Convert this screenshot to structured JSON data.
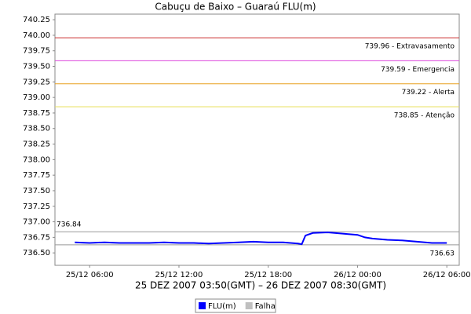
{
  "chart_data": {
    "type": "line",
    "title": "Cabuçu de Baixo – Guaraú FLU(m)",
    "subtitle": "25 DEZ 2007 03:50(GMT) – 26 DEZ 2007 08:30(GMT)",
    "x": [
      "25/12 05:00",
      "25/12 06:00",
      "25/12 07:00",
      "25/12 08:00",
      "25/12 09:00",
      "25/12 10:00",
      "25/12 11:00",
      "25/12 12:00",
      "25/12 13:00",
      "25/12 14:00",
      "25/12 15:00",
      "25/12 16:00",
      "25/12 17:00",
      "25/12 18:00",
      "25/12 19:00",
      "25/12 20:00",
      "25/12 20:15",
      "25/12 20:30",
      "25/12 21:00",
      "25/12 22:00",
      "25/12 23:00",
      "26/12 00:00",
      "26/12 00:30",
      "26/12 01:00",
      "26/12 02:00",
      "26/12 03:00",
      "26/12 04:00",
      "26/12 05:00",
      "26/12 06:00"
    ],
    "series": [
      {
        "name": "FLU(m)",
        "color": "#0000ff",
        "values": [
          736.67,
          736.66,
          736.67,
          736.66,
          736.66,
          736.66,
          736.67,
          736.66,
          736.66,
          736.65,
          736.66,
          736.67,
          736.68,
          736.67,
          736.67,
          736.65,
          736.64,
          736.78,
          736.82,
          736.83,
          736.81,
          736.79,
          736.75,
          736.73,
          736.71,
          736.7,
          736.68,
          736.66,
          736.66
        ]
      },
      {
        "name": "Falha",
        "color": "#c0c0c0",
        "values": [
          null,
          null,
          null,
          null,
          null,
          null,
          null,
          null,
          null,
          null,
          null,
          null,
          null,
          null,
          null,
          null,
          null,
          null,
          null,
          null,
          null,
          null,
          null,
          null,
          null,
          null,
          null,
          null,
          null
        ]
      }
    ],
    "reference_lines": [
      {
        "value": 739.96,
        "label": "739.96 - Extravasamento",
        "color": "#cc3333",
        "label_anchor": "right"
      },
      {
        "value": 739.59,
        "label": "739.59 - Emergencia",
        "color": "#dd44dd",
        "label_anchor": "right"
      },
      {
        "value": 739.22,
        "label": "739.22 - Alerta",
        "color": "#e8a020",
        "label_anchor": "right"
      },
      {
        "value": 738.85,
        "label": "738.85 - Atenção",
        "color": "#e8e060",
        "label_anchor": "right"
      },
      {
        "value": 736.84,
        "label": "736.84",
        "color": "#999999",
        "label_anchor": "left"
      },
      {
        "value": 736.63,
        "label": "736.63",
        "color": "#999999",
        "label_anchor": "right"
      }
    ],
    "xlim": [
      "25/12 03:40",
      "26/12 06:50"
    ],
    "xticks": [
      "25/12 06:00",
      "25/12 12:00",
      "25/12 18:00",
      "26/12 00:00",
      "26/12 06:00"
    ],
    "ylim": [
      736.3,
      740.34
    ],
    "yticks": [
      740.25,
      {
        "value": 740,
        "label": "740.00"
      },
      739.75,
      {
        "value": 739.5,
        "label": "739.50"
      },
      739.25,
      {
        "value": 739,
        "label": "739.00"
      },
      738.75,
      {
        "value": 738.5,
        "label": "738.50"
      },
      738.25,
      {
        "value": 738,
        "label": "738.00"
      },
      737.75,
      {
        "value": 737.5,
        "label": "737.50"
      },
      737.25,
      {
        "value": 737,
        "label": "737.00"
      },
      736.75,
      {
        "value": 736.5,
        "label": "736.50"
      }
    ],
    "grid": false
  }
}
